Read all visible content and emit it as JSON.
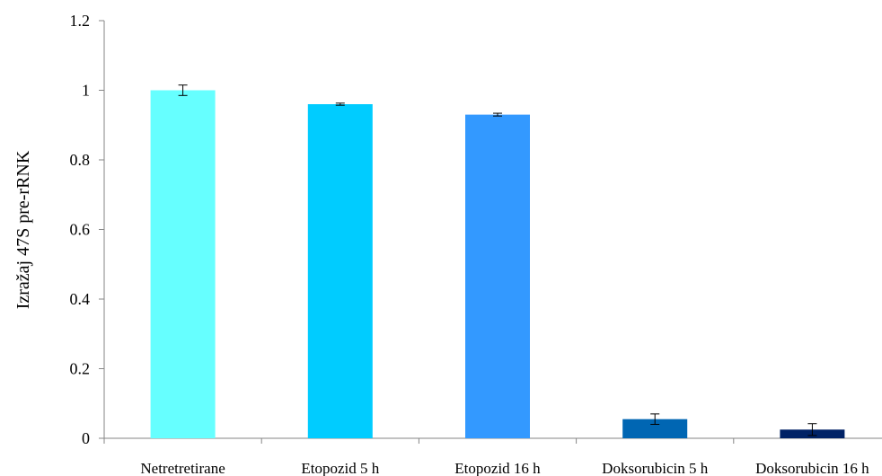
{
  "chart_data": {
    "type": "bar",
    "title": "",
    "xlabel": "",
    "ylabel": "Izražaj 47S pre-rRNK",
    "ylim": [
      0,
      1.2
    ],
    "yticks": [
      0,
      0.2,
      0.4,
      0.6,
      0.8,
      1,
      1.2
    ],
    "ytick_labels": [
      "0",
      "0.2",
      "0.4",
      "0.6",
      "0.8",
      "1",
      "1.2"
    ],
    "grid": false,
    "legend": "none",
    "categories": [
      "Netretretirane",
      "Etopozid 5 h",
      "Etopozid 16 h",
      "Doksorubicin 5 h",
      "Doksorubicin 16 h"
    ],
    "values": [
      1.0,
      0.96,
      0.93,
      0.055,
      0.025
    ],
    "errors": [
      0.015,
      0.003,
      0.004,
      0.015,
      0.017
    ],
    "colors": [
      "#66FFFF",
      "#00CCFF",
      "#3399FF",
      "#0066B3",
      "#002266"
    ]
  }
}
